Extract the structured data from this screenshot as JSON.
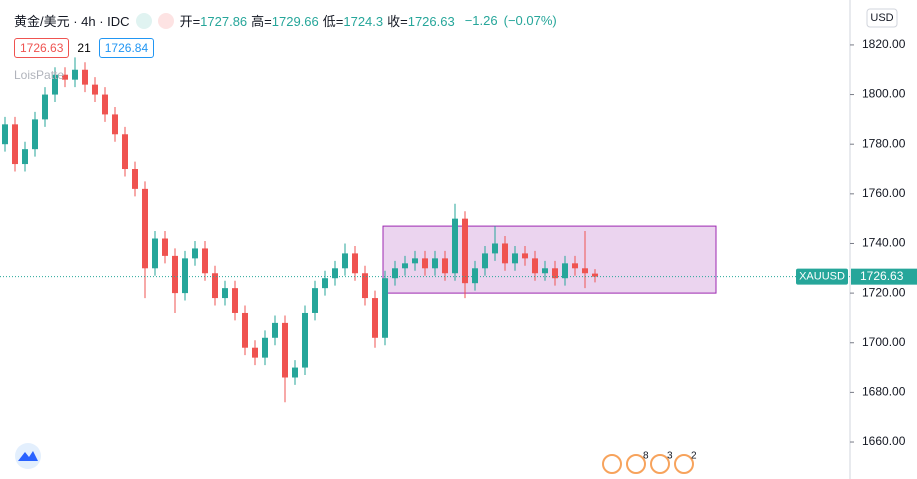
{
  "header": {
    "title": "黄金/美元 · 4h · IDC",
    "ohlc": [
      {
        "label": "开=",
        "value": 1727.86
      },
      {
        "label": "高=",
        "value": 1729.66
      },
      {
        "label": "低=",
        "value": 1724.3
      },
      {
        "label": "收=",
        "value": 1726.63
      }
    ],
    "change": {
      "value": -1.26,
      "label": "−1.26"
    },
    "change_pct": {
      "value": -0.07,
      "label": "(−0.07%)"
    },
    "sell_price": 1726.63,
    "spread": 21,
    "buy_price": 1726.84,
    "watermark": "LoisPatte"
  },
  "chart_data": {
    "type": "candlestick",
    "open": [
      1780,
      1788,
      1772,
      1778,
      1790,
      1800,
      1808,
      1806,
      1810,
      1804,
      1800,
      1792,
      1784,
      1770,
      1762,
      1730,
      1742,
      1735,
      1720,
      1734,
      1738,
      1728,
      1718,
      1722,
      1712,
      1698,
      1694,
      1702,
      1708,
      1686,
      1690,
      1712,
      1722,
      1726,
      1730,
      1736,
      1728,
      1718,
      1702,
      1726,
      1730,
      1732,
      1734,
      1730,
      1734,
      1728,
      1750,
      1724,
      1730,
      1736,
      1740,
      1732,
      1736,
      1734,
      1728,
      1730,
      1726,
      1732,
      1730,
      1727.86
    ],
    "high": [
      1791,
      1791,
      1781,
      1793,
      1803,
      1811,
      1811,
      1815,
      1813,
      1807,
      1803,
      1795,
      1787,
      1773,
      1765,
      1745,
      1745,
      1738,
      1737,
      1741,
      1741,
      1731,
      1725,
      1725,
      1715,
      1701,
      1705,
      1711,
      1711,
      1693,
      1715,
      1725,
      1729,
      1733,
      1740,
      1739,
      1731,
      1721,
      1729,
      1733,
      1735,
      1737,
      1737,
      1737,
      1737,
      1756,
      1753,
      1733,
      1739,
      1747,
      1743,
      1739,
      1739,
      1737,
      1733,
      1733,
      1735,
      1735,
      1745,
      1729.66
    ],
    "low": [
      1777,
      1769,
      1769,
      1775,
      1787,
      1797,
      1803,
      1803,
      1801,
      1797,
      1789,
      1781,
      1767,
      1759,
      1718,
      1727,
      1732,
      1712,
      1717,
      1731,
      1725,
      1715,
      1715,
      1709,
      1695,
      1691,
      1691,
      1699,
      1676,
      1683,
      1687,
      1709,
      1719,
      1723,
      1727,
      1725,
      1715,
      1698,
      1699,
      1723,
      1727,
      1729,
      1727,
      1727,
      1725,
      1725,
      1718,
      1721,
      1727,
      1733,
      1729,
      1729,
      1731,
      1725,
      1725,
      1723,
      1723,
      1727,
      1722,
      1724.3
    ],
    "close": [
      1788,
      1772,
      1778,
      1790,
      1800,
      1808,
      1806,
      1810,
      1804,
      1800,
      1792,
      1784,
      1770,
      1762,
      1730,
      1742,
      1735,
      1720,
      1734,
      1738,
      1728,
      1718,
      1722,
      1712,
      1698,
      1694,
      1702,
      1708,
      1686,
      1690,
      1712,
      1722,
      1726,
      1730,
      1736,
      1728,
      1718,
      1702,
      1726,
      1730,
      1732,
      1734,
      1730,
      1734,
      1728,
      1750,
      1724,
      1730,
      1736,
      1740,
      1732,
      1736,
      1734,
      1728,
      1730,
      1726,
      1732,
      1730,
      1728,
      1726.63
    ],
    "up_color": "#26a69a",
    "down_color": "#ef5350",
    "xlim": [
      -0.5,
      84.5
    ],
    "ylim": [
      1645.1,
      1838.1
    ],
    "yticks": [
      {
        "value": 1660,
        "label": "1660.00"
      },
      {
        "value": 1680,
        "label": "1680.00"
      },
      {
        "value": 1700,
        "label": "1700.00"
      },
      {
        "value": 1720,
        "label": "1720.00"
      },
      {
        "value": 1740,
        "label": "1740.00"
      },
      {
        "value": 1760,
        "label": "1760.00"
      },
      {
        "value": 1780,
        "label": "1780.00"
      },
      {
        "value": 1800,
        "label": "1800.00"
      },
      {
        "value": 1820,
        "label": "1820.00"
      }
    ],
    "box": {
      "xlim": [
        37.8,
        71.1
      ],
      "ylim": [
        1720,
        1747
      ],
      "color": "#9c27b0"
    },
    "last_price": 1726.63,
    "symbol_tag": "XAUUSD",
    "currency": "USD",
    "events": [
      8,
      3,
      2
    ]
  }
}
